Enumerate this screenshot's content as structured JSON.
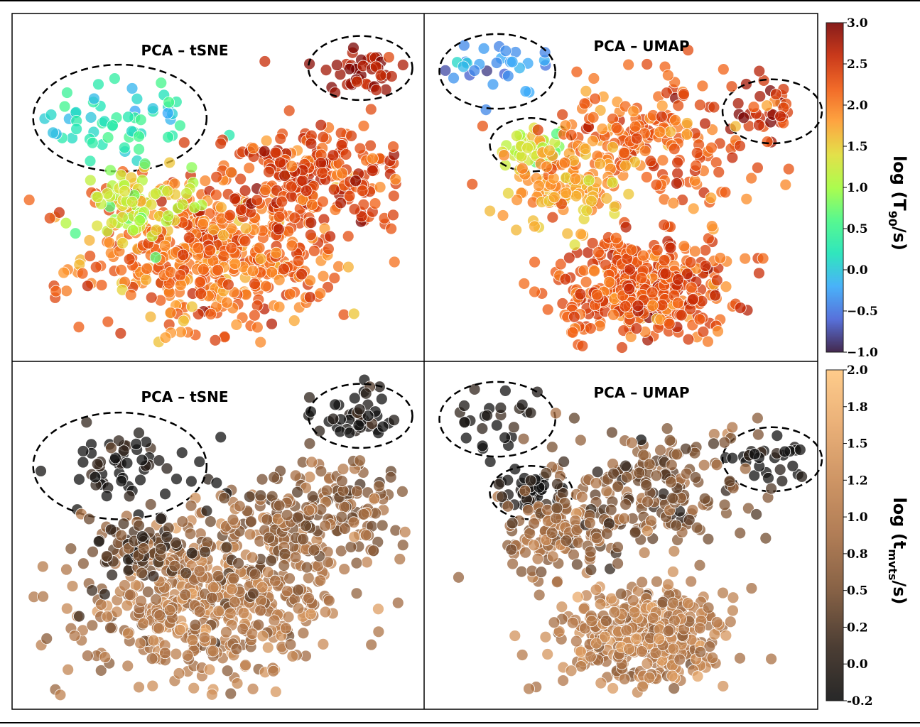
{
  "chart_data": [
    {
      "type": "scatter",
      "title": "PCA – tSNE",
      "color_variable": "log (T90/s)",
      "colormap": "turbo",
      "clusters": [
        {
          "cx": 2.5,
          "cy": 7.1,
          "spread": 1.0,
          "n": 60,
          "color_value": 0.2,
          "circled": true
        },
        {
          "cx": 8.6,
          "cy": 8.6,
          "spread": 0.6,
          "n": 45,
          "color_value": 2.8,
          "circled": true
        },
        {
          "cx": 4.8,
          "cy": 3.0,
          "spread": 1.6,
          "n": 520,
          "color_value": 2.1
        },
        {
          "cx": 7.5,
          "cy": 5.5,
          "spread": 1.2,
          "n": 220,
          "color_value": 2.4
        },
        {
          "cx": 3.0,
          "cy": 4.5,
          "spread": 0.7,
          "n": 80,
          "color_value": 1.2
        }
      ]
    },
    {
      "type": "scatter",
      "title": "PCA – UMAP",
      "color_variable": "log (T90/s)",
      "colormap": "turbo",
      "clusters": [
        {
          "cx": 1.7,
          "cy": 8.5,
          "spread": 0.7,
          "n": 30,
          "color_value": -0.3,
          "circled": true
        },
        {
          "cx": 2.6,
          "cy": 6.3,
          "spread": 0.5,
          "n": 40,
          "color_value": 1.2,
          "circled": true
        },
        {
          "cx": 9.0,
          "cy": 7.3,
          "spread": 0.6,
          "n": 35,
          "color_value": 2.7,
          "circled": true
        },
        {
          "cx": 5.6,
          "cy": 2.0,
          "spread": 1.1,
          "n": 400,
          "color_value": 2.3
        },
        {
          "cx": 5.8,
          "cy": 6.4,
          "spread": 1.4,
          "n": 200,
          "color_value": 2.2
        },
        {
          "cx": 3.5,
          "cy": 5.0,
          "spread": 0.8,
          "n": 120,
          "color_value": 1.8
        }
      ]
    },
    {
      "type": "scatter",
      "title": "PCA – tSNE",
      "color_variable": "log (tmvts/s)",
      "colormap": "copper",
      "clusters": [
        {
          "cx": 2.5,
          "cy": 7.1,
          "spread": 1.0,
          "n": 60,
          "color_value": -0.2,
          "circled": true
        },
        {
          "cx": 8.6,
          "cy": 8.6,
          "spread": 0.6,
          "n": 45,
          "color_value": -0.2,
          "circled": true
        },
        {
          "cx": 4.8,
          "cy": 3.0,
          "spread": 1.6,
          "n": 520,
          "color_value": 1.0
        },
        {
          "cx": 7.5,
          "cy": 5.5,
          "spread": 1.2,
          "n": 220,
          "color_value": 0.7
        },
        {
          "cx": 3.0,
          "cy": 4.5,
          "spread": 0.7,
          "n": 80,
          "color_value": 0.3
        }
      ]
    },
    {
      "type": "scatter",
      "title": "PCA – UMAP",
      "color_variable": "log (tmvts/s)",
      "colormap": "copper",
      "clusters": [
        {
          "cx": 1.7,
          "cy": 8.5,
          "spread": 0.7,
          "n": 30,
          "color_value": -0.2,
          "circled": true
        },
        {
          "cx": 2.6,
          "cy": 6.3,
          "spread": 0.5,
          "n": 40,
          "color_value": -0.2,
          "circled": true
        },
        {
          "cx": 9.0,
          "cy": 7.3,
          "spread": 0.6,
          "n": 35,
          "color_value": -0.2,
          "circled": true
        },
        {
          "cx": 5.6,
          "cy": 2.0,
          "spread": 1.1,
          "n": 400,
          "color_value": 1.1
        },
        {
          "cx": 5.8,
          "cy": 6.4,
          "spread": 1.4,
          "n": 200,
          "color_value": 0.6
        },
        {
          "cx": 3.5,
          "cy": 5.0,
          "spread": 0.8,
          "n": 120,
          "color_value": 0.8
        }
      ]
    }
  ],
  "colorbars": [
    {
      "label_main": "log (T",
      "label_sub": "90",
      "label_end": "/s)",
      "ticks": [
        "3.0",
        "2.5",
        "2.0",
        "1.5",
        "1.0",
        "0.5",
        "0.0",
        "−0.5",
        "−1.0"
      ],
      "colors": [
        "#7a0403",
        "#c42503",
        "#f05b12",
        "#fe9b2d",
        "#e1dd37",
        "#a4fc3b",
        "#46f884",
        "#1ae4b6",
        "#36aaf9",
        "#4662d7",
        "#30123b"
      ]
    },
    {
      "label_main": "log (t",
      "label_sub": "mvts",
      "label_end": "/s)",
      "ticks": [
        "2.0",
        "1.8",
        "1.5",
        "1.2",
        "1.0",
        "0.8",
        "0.5",
        "0.2",
        "0.0",
        "-0.2"
      ],
      "colors": [
        "#ffc77f",
        "#e8a86a",
        "#c98a55",
        "#a86f44",
        "#7a5132",
        "#3a2a1f",
        "#111111"
      ]
    }
  ]
}
